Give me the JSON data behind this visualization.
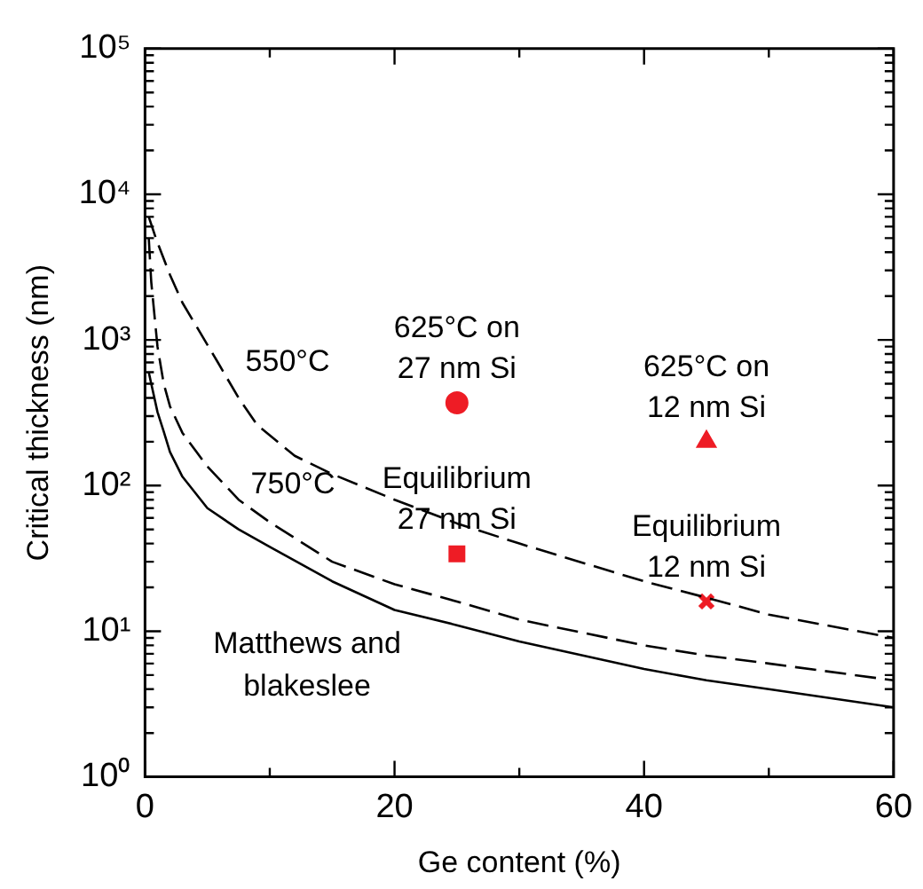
{
  "chart_data": {
    "type": "line",
    "xlabel": "Ge content (%)",
    "ylabel": "Critical thickness (nm)",
    "xlim": [
      0,
      60
    ],
    "xticks": [
      0,
      {
        "value": 10,
        "label": null
      },
      20,
      {
        "value": 30,
        "label": null
      },
      40,
      {
        "value": 50,
        "label": null
      },
      60
    ],
    "ylim": [
      1,
      100000
    ],
    "log": "y",
    "yticks": [
      {
        "value": 1,
        "label": "10⁰"
      },
      {
        "value": 2,
        "label": null
      },
      {
        "value": 3,
        "label": null
      },
      {
        "value": 4,
        "label": null
      },
      {
        "value": 5,
        "label": null
      },
      {
        "value": 6,
        "label": null
      },
      {
        "value": 7,
        "label": null
      },
      {
        "value": 8,
        "label": null
      },
      {
        "value": 9,
        "label": null
      },
      {
        "value": 10,
        "label": "10¹"
      },
      {
        "value": 20,
        "label": null
      },
      {
        "value": 30,
        "label": null
      },
      {
        "value": 40,
        "label": null
      },
      {
        "value": 50,
        "label": null
      },
      {
        "value": 60,
        "label": null
      },
      {
        "value": 70,
        "label": null
      },
      {
        "value": 80,
        "label": null
      },
      {
        "value": 90,
        "label": null
      },
      {
        "value": 100,
        "label": "10²"
      },
      {
        "value": 200,
        "label": null
      },
      {
        "value": 300,
        "label": null
      },
      {
        "value": 400,
        "label": null
      },
      {
        "value": 500,
        "label": null
      },
      {
        "value": 600,
        "label": null
      },
      {
        "value": 700,
        "label": null
      },
      {
        "value": 800,
        "label": null
      },
      {
        "value": 900,
        "label": null
      },
      {
        "value": 1000,
        "label": "10³"
      },
      {
        "value": 2000,
        "label": null
      },
      {
        "value": 3000,
        "label": null
      },
      {
        "value": 4000,
        "label": null
      },
      {
        "value": 5000,
        "label": null
      },
      {
        "value": 6000,
        "label": null
      },
      {
        "value": 7000,
        "label": null
      },
      {
        "value": 8000,
        "label": null
      },
      {
        "value": 9000,
        "label": null
      },
      {
        "value": 10000,
        "label": "10⁴"
      },
      {
        "value": 20000,
        "label": null
      },
      {
        "value": 30000,
        "label": null
      },
      {
        "value": 40000,
        "label": null
      },
      {
        "value": 50000,
        "label": null
      },
      {
        "value": 60000,
        "label": null
      },
      {
        "value": 70000,
        "label": null
      },
      {
        "value": 80000,
        "label": null
      },
      {
        "value": 90000,
        "label": null
      },
      {
        "value": 100000,
        "label": "10⁵"
      }
    ],
    "grid": false,
    "legend": false,
    "series": [
      {
        "name": "550°C",
        "color": "#000000",
        "line_style": "dashed",
        "marker": "none",
        "x": [
          0.3,
          0.9,
          2,
          3,
          5.8,
          7.5,
          9,
          12,
          15,
          20,
          25,
          30,
          40,
          45,
          50,
          60
        ],
        "values": [
          7000,
          4900,
          2800,
          1800,
          710,
          400,
          260,
          160,
          120,
          80,
          55,
          40,
          22,
          17,
          13,
          9
        ]
      },
      {
        "name": "750°C",
        "color": "#000000",
        "line_style": "dashed",
        "marker": "none",
        "x": [
          0.3,
          0.5,
          1,
          1.5,
          2,
          3,
          5,
          7.5,
          10,
          15,
          20,
          25,
          30,
          40,
          45,
          50,
          60
        ],
        "values": [
          5000,
          2500,
          900,
          500,
          350,
          230,
          135,
          80,
          56,
          30,
          21,
          16,
          12,
          8,
          6.8,
          6,
          4.6
        ]
      },
      {
        "name": "Matthews and blakeslee",
        "color": "#000000",
        "line_style": "solid",
        "marker": "none",
        "x": [
          0.3,
          0.5,
          1,
          1.5,
          2,
          3,
          5,
          7.5,
          10,
          15,
          20,
          25,
          30,
          40,
          45,
          50,
          60
        ],
        "values": [
          600,
          500,
          320,
          235,
          170,
          115,
          70,
          50,
          38,
          22,
          14,
          11,
          8.5,
          5.5,
          4.6,
          4,
          3
        ]
      },
      {
        "name": "625°C on 27 nm Si",
        "type": "scatter",
        "color": "#ee1c25",
        "marker": "circle",
        "x": [
          25
        ],
        "values": [
          370
        ]
      },
      {
        "name": "Equilibrium 27 nm Si",
        "type": "scatter",
        "color": "#ee1c25",
        "marker": "square",
        "x": [
          25
        ],
        "values": [
          34
        ]
      },
      {
        "name": "625°C on 12 nm Si",
        "type": "scatter",
        "color": "#ee1c25",
        "marker": "triangle",
        "x": [
          45
        ],
        "values": [
          200
        ]
      },
      {
        "name": "Equilibrium 12 nm Si",
        "type": "scatter",
        "color": "#ee1c25",
        "marker": "cross",
        "x": [
          45
        ],
        "values": [
          16
        ]
      }
    ]
  }
}
